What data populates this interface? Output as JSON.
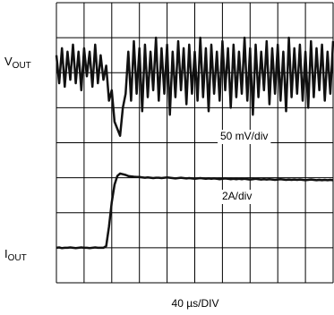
{
  "chart_data": {
    "type": "line",
    "x": [
      0,
      0.1,
      0.2,
      0.3,
      0.4,
      0.5,
      0.6,
      0.7,
      0.8,
      0.9,
      1,
      1.1,
      1.2,
      1.3,
      1.4,
      1.5,
      1.6,
      1.7,
      1.8,
      1.9,
      2,
      2.1,
      2.2,
      2.3,
      2.4,
      2.5,
      2.6,
      2.7,
      2.8,
      2.9,
      3,
      3.1,
      3.2,
      3.3,
      3.4,
      3.5,
      3.6,
      3.7,
      3.8,
      3.9,
      4,
      4.1,
      4.2,
      4.3,
      4.4,
      4.5,
      4.6,
      4.7,
      4.8,
      4.9,
      5,
      5.1,
      5.2,
      5.3,
      5.4,
      5.5,
      5.6,
      5.7,
      5.8,
      5.9,
      6,
      6.1,
      6.2,
      6.3,
      6.4,
      6.5,
      6.6,
      6.7,
      6.8,
      6.9,
      7,
      7.1,
      7.2,
      7.3,
      7.4,
      7.5,
      7.6,
      7.7,
      7.8,
      7.9,
      8,
      8.1,
      8.2,
      8.3,
      8.4,
      8.5,
      8.6,
      8.7,
      8.8,
      8.9,
      9,
      9.1,
      9.2,
      9.3,
      9.4,
      9.5,
      9.6,
      9.7,
      9.8,
      9.9,
      10
    ],
    "series": [
      {
        "label_main": "V",
        "label_sub": "OUT",
        "color": "#111111",
        "scale_label": "50 mV/div",
        "values": [
          6.5,
          5.7,
          6.7,
          5.6,
          6.6,
          5.8,
          6.8,
          5.7,
          6.6,
          5.5,
          6.7,
          5.9,
          6.6,
          5.6,
          6.8,
          5.7,
          6.5,
          5.8,
          6.2,
          5.2,
          5.5,
          4.6,
          4.4,
          4.2,
          5.0,
          5.4,
          6.6,
          5.2,
          6.9,
          5.4,
          6.7,
          4.9,
          6.8,
          5.3,
          6.6,
          5.5,
          7.0,
          5.2,
          6.7,
          5.4,
          6.8,
          4.8,
          6.6,
          5.3,
          6.9,
          5.5,
          6.7,
          5.1,
          6.8,
          5.4,
          6.6,
          5.2,
          7.0,
          5.3,
          6.7,
          4.9,
          6.8,
          5.4,
          6.6,
          5.2,
          6.9,
          5.5,
          6.7,
          5.0,
          6.8,
          5.3,
          6.6,
          5.4,
          7.0,
          5.2,
          6.7,
          4.8,
          6.8,
          5.3,
          6.6,
          5.5,
          6.9,
          5.1,
          6.7,
          5.4,
          6.8,
          5.2,
          6.6,
          4.9,
          7.0,
          5.3,
          6.7,
          5.4,
          6.8,
          5.2,
          6.6,
          5.0,
          6.9,
          5.3,
          6.7,
          5.5,
          6.8,
          5.2,
          6.6,
          5.4,
          6.9
        ]
      },
      {
        "label_main": "I",
        "label_sub": "OUT",
        "color": "#111111",
        "scale_label": "2A/div",
        "values": [
          1.0,
          1.01,
          0.99,
          1.0,
          1.0,
          1.01,
          1.0,
          0.99,
          1.0,
          1.01,
          1.0,
          1.0,
          0.99,
          1.0,
          1.01,
          1.0,
          1.0,
          1.0,
          1.05,
          1.6,
          2.3,
          2.8,
          3.05,
          3.12,
          3.1,
          3.08,
          3.05,
          3.04,
          3.03,
          3.02,
          3.02,
          3.01,
          3.0,
          3.01,
          3.0,
          2.99,
          3.0,
          3.0,
          2.99,
          3.0,
          3.01,
          3.0,
          2.99,
          2.98,
          2.99,
          3.0,
          2.99,
          2.98,
          2.99,
          2.98,
          2.97,
          2.98,
          2.99,
          2.98,
          2.97,
          2.98,
          2.97,
          2.98,
          2.97,
          2.96,
          2.97,
          2.98,
          2.97,
          2.96,
          2.97,
          2.96,
          2.97,
          2.96,
          2.97,
          2.96,
          2.95,
          2.96,
          2.97,
          2.96,
          2.95,
          2.96,
          2.95,
          2.96,
          2.95,
          2.94,
          2.95,
          2.96,
          2.95,
          2.94,
          2.95,
          2.94,
          2.95,
          2.94,
          2.95,
          2.94,
          2.93,
          2.94,
          2.95,
          2.94,
          2.93,
          2.94,
          2.93,
          2.94,
          2.93,
          2.94,
          2.93
        ]
      }
    ],
    "x_label": "40 µs/DIV",
    "xlim": [
      0,
      10
    ],
    "xticks": [
      0,
      1,
      2,
      3,
      4,
      5,
      6,
      7,
      8,
      9,
      10
    ],
    "ylim": [
      0,
      8
    ],
    "yticks": [
      0,
      1,
      2,
      3,
      4,
      5,
      6,
      7,
      8
    ],
    "grid": true
  }
}
